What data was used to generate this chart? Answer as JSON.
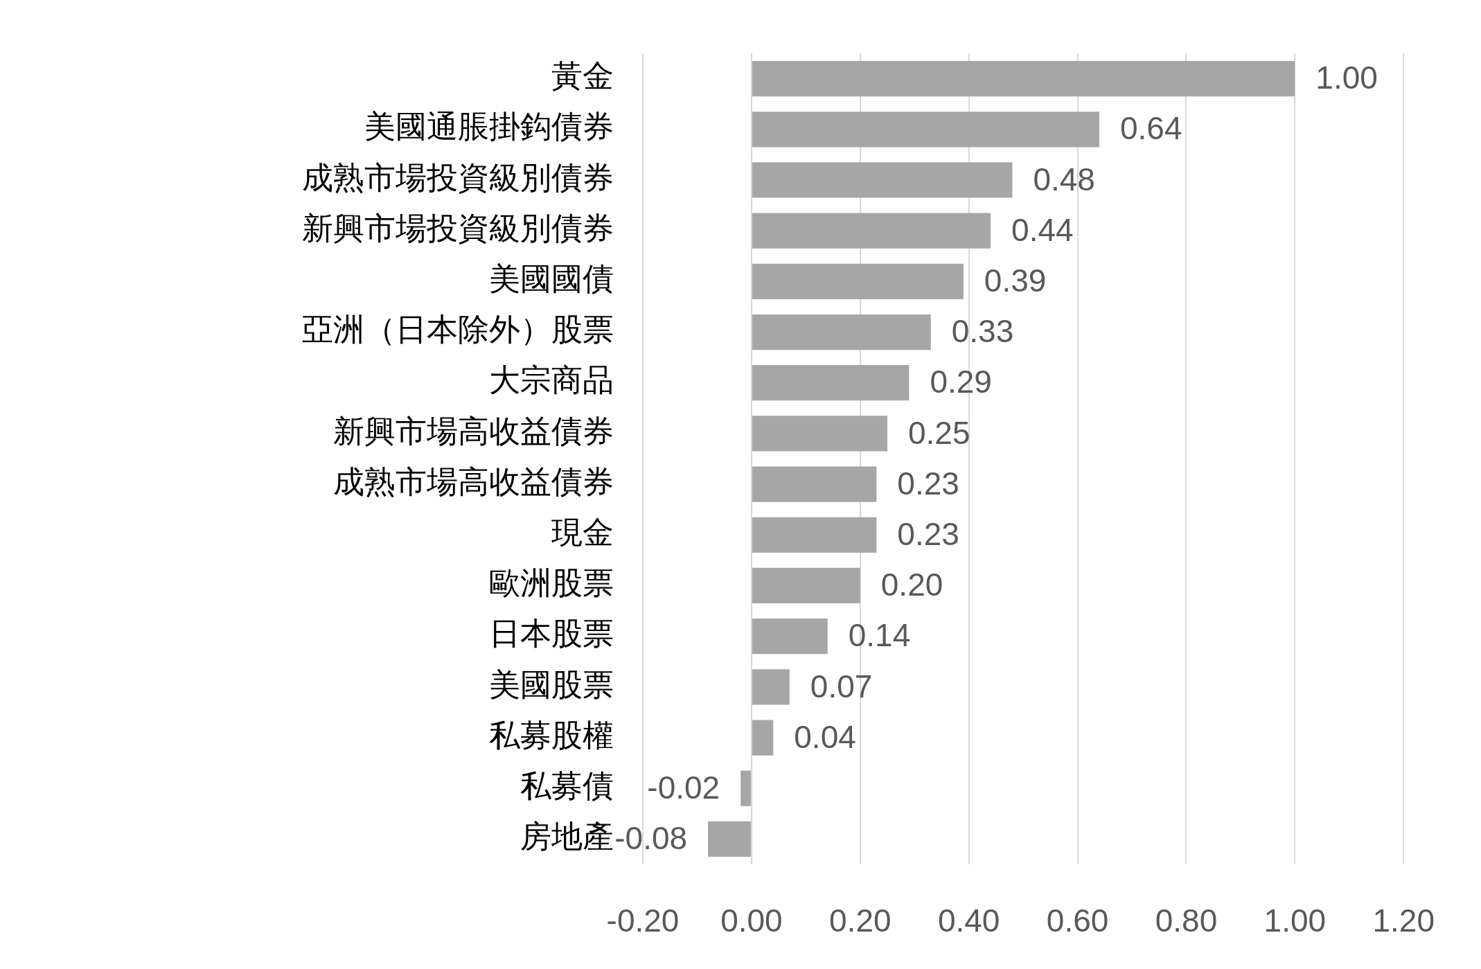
{
  "chart_data": {
    "type": "bar",
    "orientation": "horizontal",
    "categories": [
      "黃金",
      "美國通脹掛鈎債券",
      "成熟市場投資級別債券",
      "新興市場投資級別債券",
      "美國國債",
      "亞洲（日本除外）股票",
      "大宗商品",
      "新興市場高收益債券",
      "成熟市場高收益債券",
      "現金",
      "歐洲股票",
      "日本股票",
      "美國股票",
      "私募股權",
      "私募債",
      "房地產"
    ],
    "values": [
      1.0,
      0.64,
      0.48,
      0.44,
      0.39,
      0.33,
      0.29,
      0.25,
      0.23,
      0.23,
      0.2,
      0.14,
      0.07,
      0.04,
      -0.02,
      -0.08
    ],
    "value_labels": [
      "1.00",
      "0.64",
      "0.48",
      "0.44",
      "0.39",
      "0.33",
      "0.29",
      "0.25",
      "0.23",
      "0.23",
      "0.20",
      "0.14",
      "0.07",
      "0.04",
      "-0.02",
      "-0.08"
    ],
    "color": "#a6a6a6",
    "xlim": [
      -0.2,
      1.2
    ],
    "xticks": [
      {
        "value": -0.2,
        "label": "-0.20"
      },
      {
        "value": 0,
        "label": "0.00"
      },
      {
        "value": 0.2,
        "label": "0.20"
      },
      {
        "value": 0.4,
        "label": "0.40"
      },
      {
        "value": 0.6,
        "label": "0.60"
      },
      {
        "value": 0.8,
        "label": "0.80"
      },
      {
        "value": 1.0,
        "label": "1.00"
      },
      {
        "value": 1.2,
        "label": "1.20"
      }
    ],
    "grid": "x"
  }
}
